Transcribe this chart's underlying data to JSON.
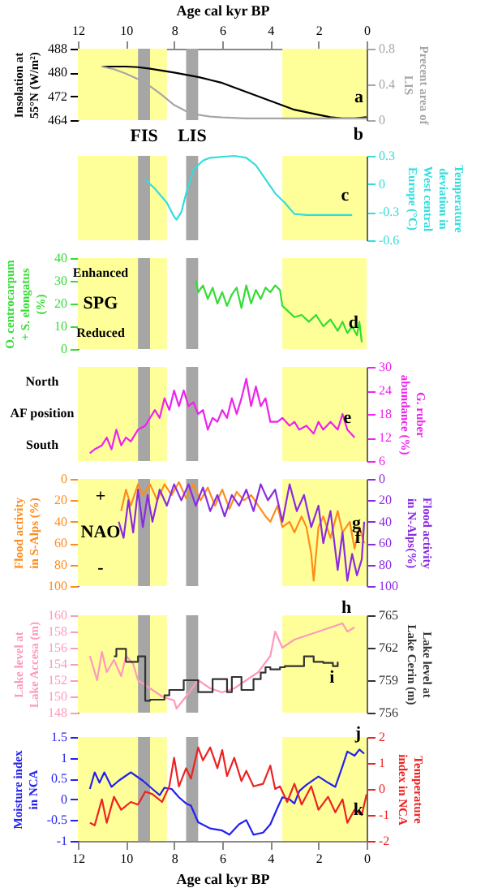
{
  "chart_data": [
    {
      "type": "line",
      "xlim": [
        12,
        0
      ],
      "x2lim": [
        12,
        0
      ],
      "tick_labels": "y",
      "x2ticks": [
        12,
        10,
        8,
        6,
        4,
        2,
        0
      ],
      "x2label": "Age cal kyr BP",
      "ylabel": "Insolation at 55°N (W/m²)",
      "y2label": "Precent area of LIS",
      "ylim": [
        464,
        488
      ],
      "yticks": [
        464,
        472,
        480,
        488
      ],
      "y2lim": [
        0,
        0.8
      ],
      "y2ticks": [
        0,
        0.4,
        0.8
      ],
      "bands": [
        {
          "axis": "x",
          "from": 12,
          "to": 8.3,
          "color": "#ffff99"
        },
        {
          "axis": "x",
          "from": 3.5,
          "to": 0,
          "color": "#ffff99"
        },
        {
          "axis": "x",
          "from": 9.5,
          "to": 9.0,
          "color": "#a6a6a6",
          "label": "FIS"
        },
        {
          "axis": "x",
          "from": 7.5,
          "to": 7.0,
          "color": "#a6a6a6",
          "label": "LIS"
        }
      ],
      "series": [
        {
          "name": "a",
          "color": "#000000",
          "x": [
            11,
            10,
            9.5,
            9,
            8,
            7,
            6.5,
            6,
            5,
            4,
            3.5,
            3,
            2,
            1.5,
            1,
            0.5,
            0
          ],
          "values": [
            482,
            482,
            481.8,
            481.3,
            480,
            478.5,
            477.5,
            476.5,
            473.5,
            470.5,
            469,
            467.5,
            465.8,
            465,
            464.6,
            464.6,
            465
          ]
        },
        {
          "name": "b",
          "color": "#a6a6a6",
          "axis": "y2",
          "x": [
            11,
            10.5,
            10,
            9.5,
            9,
            8.5,
            8,
            7.5,
            7,
            6.5,
            6,
            5,
            4,
            3,
            2,
            1,
            0
          ],
          "values": [
            0.6,
            0.57,
            0.52,
            0.46,
            0.38,
            0.28,
            0.17,
            0.1,
            0.06,
            0.04,
            0.03,
            0.02,
            0.02,
            0.02,
            0.02,
            0.02,
            0.02
          ]
        }
      ]
    },
    {
      "type": "line",
      "xlim": [
        12,
        0
      ],
      "tick_labels": "y",
      "y2label": "Temperature deviation in West central Europe (°C)",
      "y2lim": [
        -0.6,
        0.3
      ],
      "y2ticks": [
        -0.6,
        -0.3,
        0,
        0.3
      ],
      "bands": [
        {
          "axis": "x",
          "from": 12,
          "to": 8.3,
          "color": "#ffff99"
        },
        {
          "axis": "x",
          "from": 3.5,
          "to": 0,
          "color": "#ffff99"
        },
        {
          "axis": "x",
          "from": 9.5,
          "to": 9.0,
          "color": "#a6a6a6"
        },
        {
          "axis": "x",
          "from": 7.5,
          "to": 7.0,
          "color": "#a6a6a6"
        }
      ],
      "series": [
        {
          "name": "c",
          "color": "#33dddd",
          "axis": "y2",
          "x": [
            9.2,
            8.8,
            8.3,
            8,
            7.9,
            7.7,
            7.5,
            7.2,
            6.8,
            6.5,
            5.5,
            5,
            4.6,
            4.2,
            3.8,
            3.4,
            3,
            2.5,
            1.5,
            0.6
          ],
          "values": [
            0.05,
            -0.05,
            -0.2,
            -0.35,
            -0.38,
            -0.3,
            -0.1,
            0.15,
            0.25,
            0.28,
            0.3,
            0.28,
            0.2,
            0.05,
            -0.1,
            -0.2,
            -0.32,
            -0.33,
            -0.33,
            -0.33
          ]
        }
      ]
    },
    {
      "type": "line",
      "xlim": [
        12,
        0
      ],
      "tick_labels": "y",
      "ylabel": "O. centrocarpum + S. elongatus (%)",
      "ylim": [
        0,
        40
      ],
      "yticks": [
        0,
        10,
        20,
        30,
        40
      ],
      "annotations": [
        "Enhanced",
        "SPG",
        "Reduced"
      ],
      "bands": [
        {
          "axis": "x",
          "from": 12,
          "to": 8.3,
          "color": "#ffff99"
        },
        {
          "axis": "x",
          "from": 3.5,
          "to": 0,
          "color": "#ffff99"
        },
        {
          "axis": "x",
          "from": 9.5,
          "to": 9.0,
          "color": "#a6a6a6"
        },
        {
          "axis": "x",
          "from": 7.5,
          "to": 7.0,
          "color": "#a6a6a6"
        }
      ],
      "series": [
        {
          "name": "d",
          "color": "#33dd33",
          "x": [
            7.1,
            7.0,
            6.8,
            6.6,
            6.4,
            6.2,
            6.0,
            5.8,
            5.6,
            5.4,
            5.2,
            5.0,
            4.8,
            4.6,
            4.4,
            4.2,
            4.0,
            3.8,
            3.6,
            3.5,
            3.3,
            3.0,
            2.7,
            2.4,
            2.1,
            1.8,
            1.5,
            1.2,
            1.0,
            0.8,
            0.6,
            0.4,
            0.3,
            0.2
          ],
          "values": [
            30,
            25,
            28,
            22,
            27,
            20,
            25,
            19,
            24,
            27,
            18,
            28,
            20,
            26,
            22,
            27,
            25,
            28,
            26,
            19,
            17,
            14,
            15,
            12,
            15,
            10,
            13,
            8,
            12,
            7,
            10,
            6,
            12,
            3
          ]
        }
      ]
    },
    {
      "type": "line",
      "xlim": [
        12,
        0
      ],
      "tick_labels": "y",
      "y2label": "G. ruber abundance (%)",
      "y2lim": [
        6,
        30
      ],
      "y2ticks": [
        6,
        12,
        18,
        24,
        30
      ],
      "annotations": [
        "North",
        "AF position",
        "South"
      ],
      "bands": [
        {
          "axis": "x",
          "from": 12,
          "to": 8.3,
          "color": "#ffff99"
        },
        {
          "axis": "x",
          "from": 3.5,
          "to": 0,
          "color": "#ffff99"
        },
        {
          "axis": "x",
          "from": 9.5,
          "to": 9.0,
          "color": "#a6a6a6"
        },
        {
          "axis": "x",
          "from": 7.5,
          "to": 7.0,
          "color": "#a6a6a6"
        }
      ],
      "series": [
        {
          "name": "e",
          "color": "#ee22ee",
          "axis": "y2",
          "x": [
            11.5,
            11.3,
            11.0,
            10.8,
            10.6,
            10.4,
            10.2,
            10.0,
            9.8,
            9.5,
            9.2,
            9.0,
            8.8,
            8.6,
            8.4,
            8.2,
            8.0,
            7.8,
            7.6,
            7.4,
            7.2,
            7.0,
            6.8,
            6.6,
            6.4,
            6.2,
            6.0,
            5.8,
            5.6,
            5.4,
            5.2,
            5.0,
            4.8,
            4.6,
            4.4,
            4.2,
            4.0,
            3.7,
            3.5,
            3.2,
            3.0,
            2.8,
            2.5,
            2.2,
            2.0,
            1.8,
            1.5,
            1.2,
            1.0,
            0.8,
            0.5
          ],
          "values": [
            8,
            9,
            10,
            12,
            9,
            14,
            10,
            12,
            11,
            14,
            15,
            17,
            19,
            17,
            22,
            19,
            24,
            20,
            24,
            20,
            21,
            18,
            19,
            14,
            17,
            16,
            19,
            17,
            22,
            18,
            22,
            27,
            20,
            25,
            20,
            22,
            16,
            16,
            17,
            15,
            16,
            14,
            15,
            13,
            16,
            14,
            16,
            14,
            18,
            14,
            12
          ]
        }
      ]
    },
    {
      "type": "line",
      "xlim": [
        12,
        0
      ],
      "tick_labels": "y",
      "ylabel": "Flood activity in S-Alps (%)",
      "y2label": "Flood activity in N-Alps(%)",
      "ylim": [
        100,
        0
      ],
      "yticks": [
        0,
        20,
        40,
        60,
        80,
        100
      ],
      "y2lim": [
        100,
        0
      ],
      "y2ticks": [
        0,
        20,
        40,
        60,
        80,
        100
      ],
      "annotations": [
        "+",
        "NAO",
        "-"
      ],
      "bands": [
        {
          "axis": "x",
          "from": 12,
          "to": 8.3,
          "color": "#ffff99"
        },
        {
          "axis": "x",
          "from": 3.5,
          "to": 0,
          "color": "#ffff99"
        },
        {
          "axis": "x",
          "from": 9.5,
          "to": 9.0,
          "color": "#a6a6a6"
        },
        {
          "axis": "x",
          "from": 7.5,
          "to": 7.0,
          "color": "#a6a6a6"
        }
      ],
      "series": [
        {
          "name": "g",
          "color": "#ff8c1a",
          "x": [
            10.2,
            10.0,
            9.8,
            9.5,
            9.3,
            9.0,
            8.7,
            8.4,
            8.1,
            7.8,
            7.5,
            7.2,
            6.9,
            6.6,
            6.3,
            6.0,
            5.7,
            5.4,
            5.1,
            4.8,
            4.5,
            4.2,
            4.0,
            3.7,
            3.5,
            3.2,
            3.0,
            2.7,
            2.5,
            2.3,
            2.2,
            2.0,
            1.8,
            1.5,
            1.2,
            1.0,
            0.7,
            0.5,
            0.3,
            0.1
          ],
          "values": [
            30,
            10,
            25,
            5,
            15,
            5,
            20,
            5,
            15,
            3,
            18,
            5,
            20,
            8,
            25,
            10,
            28,
            12,
            20,
            15,
            25,
            35,
            40,
            25,
            45,
            40,
            50,
            35,
            45,
            70,
            95,
            45,
            35,
            55,
            30,
            50,
            40,
            65,
            45,
            60
          ]
        },
        {
          "name": "f",
          "color": "#8a2be2",
          "axis": "y2",
          "x": [
            10.3,
            10.1,
            9.9,
            9.7,
            9.5,
            9.3,
            9.1,
            8.9,
            8.6,
            8.3,
            8.0,
            7.7,
            7.4,
            7.1,
            6.8,
            6.5,
            6.2,
            5.9,
            5.6,
            5.3,
            5.0,
            4.7,
            4.4,
            4.1,
            3.8,
            3.5,
            3.2,
            2.9,
            2.6,
            2.3,
            2.0,
            1.8,
            1.5,
            1.2,
            1.0,
            0.8,
            0.6,
            0.4,
            0.2,
            0.1
          ],
          "values": [
            40,
            55,
            20,
            50,
            10,
            45,
            15,
            40,
            10,
            25,
            5,
            20,
            5,
            25,
            8,
            30,
            15,
            35,
            15,
            25,
            10,
            30,
            5,
            20,
            10,
            40,
            5,
            30,
            15,
            45,
            25,
            60,
            30,
            85,
            50,
            95,
            70,
            90,
            75,
            40
          ]
        }
      ]
    },
    {
      "type": "line",
      "xlim": [
        12,
        0
      ],
      "tick_labels": "y",
      "ylabel": "Lake level at Lake Accesa (m)",
      "y2label": "Lake level at Lake Cerin (m)",
      "ylim": [
        148,
        160
      ],
      "yticks": [
        148,
        150,
        152,
        154,
        156,
        158,
        160
      ],
      "y2lim": [
        756,
        765
      ],
      "y2ticks": [
        756,
        759,
        762,
        765
      ],
      "bands": [
        {
          "axis": "x",
          "from": 12,
          "to": 8.3,
          "color": "#ffff99"
        },
        {
          "axis": "x",
          "from": 3.5,
          "to": 0,
          "color": "#ffff99"
        },
        {
          "axis": "x",
          "from": 9.5,
          "to": 9.0,
          "color": "#a6a6a6"
        },
        {
          "axis": "x",
          "from": 7.5,
          "to": 7.0,
          "color": "#a6a6a6"
        }
      ],
      "series": [
        {
          "name": "h",
          "color": "#ff99bb",
          "x": [
            11.5,
            11.2,
            11.0,
            10.8,
            10.5,
            10.2,
            10.0,
            9.7,
            9.5,
            9.0,
            8.5,
            8.0,
            7.9,
            7.5,
            7.0,
            6.5,
            6.0,
            5.5,
            5.0,
            4.5,
            4.0,
            3.8,
            3.5,
            3.0,
            2.5,
            2.0,
            1.5,
            1.0,
            0.8,
            0.5
          ],
          "values": [
            155,
            152,
            155.5,
            153,
            154.5,
            152.5,
            155,
            154,
            152,
            151,
            150,
            149.5,
            148.5,
            150,
            152,
            151,
            150.5,
            151,
            152,
            153,
            155,
            158,
            156,
            157,
            157.5,
            158,
            158.5,
            159,
            158,
            158.5
          ]
        },
        {
          "name": "i",
          "color": "#333333",
          "type": "step",
          "axis": "y2",
          "x": [
            10.5,
            10.4,
            10.0,
            9.5,
            9.2,
            9.0,
            8.4,
            8.2,
            7.6,
            7.0,
            6.4,
            5.8,
            5.6,
            5.2,
            4.7,
            4.4,
            4.2,
            4.0,
            3.6,
            3.4,
            2.6,
            2.2,
            1.8,
            1.4,
            1.2
          ],
          "values": [
            761.2,
            761.9,
            760.7,
            761.2,
            757.1,
            757.2,
            757.6,
            758.1,
            759.0,
            757.9,
            759.1,
            757.9,
            759.3,
            758.1,
            759.1,
            759.7,
            760.2,
            760.0,
            760.2,
            760.3,
            761.2,
            760.7,
            760.6,
            760.3,
            760.7
          ]
        }
      ]
    },
    {
      "type": "line",
      "xlim": [
        12,
        0
      ],
      "xticks": [
        12,
        10,
        8,
        6,
        4,
        2,
        0
      ],
      "xlabel": "Age cal kyr BP",
      "ylabel": "Moisture index in NCA",
      "y2label": "Temperature index in NCA",
      "ylim": [
        -1,
        1.5
      ],
      "yticks": [
        -1,
        -0.5,
        0,
        0.5,
        1,
        1.5
      ],
      "y2lim": [
        -2,
        2
      ],
      "y2ticks": [
        -2,
        -1,
        0,
        1,
        2
      ],
      "bands": [
        {
          "axis": "x",
          "from": 12,
          "to": 8.3,
          "color": "#ffff99"
        },
        {
          "axis": "x",
          "from": 3.5,
          "to": 0,
          "color": "#ffff99"
        },
        {
          "axis": "x",
          "from": 9.5,
          "to": 9.0,
          "color": "#a6a6a6"
        },
        {
          "axis": "x",
          "from": 7.5,
          "to": 7.0,
          "color": "#a6a6a6"
        }
      ],
      "series": [
        {
          "name": "j",
          "color": "#2222ee",
          "x": [
            11.5,
            11.3,
            11.1,
            10.9,
            10.6,
            10.3,
            9.8,
            9.3,
            8.9,
            8.6,
            8.4,
            8.1,
            7.8,
            7.5,
            7.3,
            7.0,
            6.5,
            6.0,
            5.7,
            5.3,
            5.0,
            4.7,
            4.3,
            4.0,
            3.7,
            3.5,
            3.2,
            3.0,
            2.8,
            2.5,
            2.0,
            1.6,
            1.3,
            1.0,
            0.8,
            0.5,
            0.3,
            0.1
          ],
          "values": [
            0.25,
            0.65,
            0.4,
            0.65,
            0.3,
            0.45,
            0.65,
            0.45,
            0.25,
            0.1,
            0.28,
            0.25,
            0.05,
            -0.1,
            -0.15,
            -0.55,
            -0.7,
            -0.75,
            -0.85,
            -0.6,
            -0.5,
            -0.85,
            -0.8,
            -0.6,
            -0.2,
            0.05,
            0.0,
            -0.1,
            0.2,
            0.35,
            0.55,
            0.4,
            0.3,
            0.8,
            1.15,
            1.05,
            1.2,
            1.1
          ]
        },
        {
          "name": "k",
          "color": "#ee2222",
          "axis": "y2",
          "x": [
            11.5,
            11.3,
            11.0,
            10.8,
            10.5,
            10.2,
            9.8,
            9.5,
            9.2,
            8.9,
            8.5,
            8.2,
            8.0,
            7.8,
            7.5,
            7.3,
            7.0,
            6.8,
            6.5,
            6.2,
            6.0,
            5.8,
            5.5,
            5.2,
            5.0,
            4.7,
            4.3,
            4.0,
            3.8,
            3.6,
            3.3,
            3.0,
            2.7,
            2.3,
            2.0,
            1.6,
            1.3,
            1.0,
            0.8,
            0.5,
            0.2,
            0.0
          ],
          "values": [
            -1.3,
            -1.4,
            -0.4,
            -1.3,
            -0.3,
            -0.8,
            -0.5,
            -0.6,
            -0.1,
            -0.2,
            -0.5,
            0.1,
            1.2,
            0.1,
            0.8,
            0.4,
            1.6,
            1.1,
            1.6,
            0.8,
            1.5,
            0.5,
            1.2,
            0.3,
            0.7,
            0.1,
            0.2,
            0.9,
            0.0,
            0.1,
            -0.5,
            0.2,
            -0.6,
            0.1,
            -0.8,
            -0.3,
            -0.9,
            -0.4,
            -1.3,
            -0.8,
            -1.0,
            -0.2
          ]
        }
      ]
    }
  ]
}
